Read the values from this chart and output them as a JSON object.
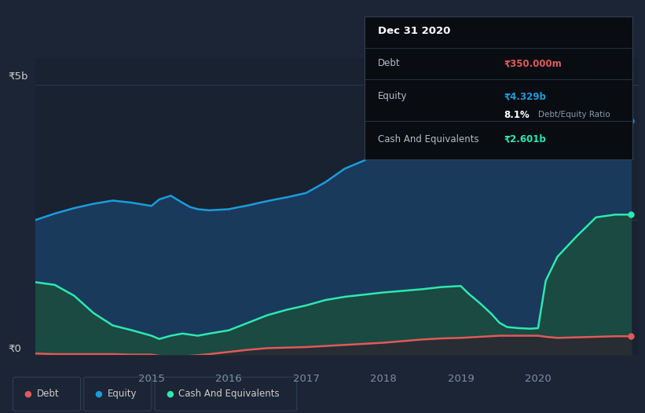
{
  "background_color": "#1c2535",
  "plot_bg_color": "#1e2d3e",
  "chart_bg_color": "#192230",
  "title": "Dec 31 2020",
  "y_label_5b": "₹5b",
  "y_label_0": "₹0",
  "ylim": [
    0,
    5.5
  ],
  "xlim": [
    2013.5,
    2021.3
  ],
  "equity_color": "#1b9cdb",
  "debt_color": "#e05a5a",
  "cash_color": "#2de8b0",
  "equity_fill": "#1a3a5c",
  "cash_fill": "#1a4a42",
  "debt_fill": "#2a2830",
  "grid_color": "#2a3f55",
  "tooltip_bg": "#090d12",
  "tooltip_border": "#2a3f55",
  "legend_bg": "#1c2535",
  "legend_border": "#2e3f52",
  "equity_x": [
    2013.5,
    2013.75,
    2014.0,
    2014.25,
    2014.5,
    2014.75,
    2015.0,
    2015.1,
    2015.25,
    2015.4,
    2015.5,
    2015.6,
    2015.75,
    2016.0,
    2016.1,
    2016.25,
    2016.4,
    2016.5,
    2016.6,
    2016.75,
    2017.0,
    2017.25,
    2017.5,
    2017.75,
    2018.0,
    2018.25,
    2018.5,
    2018.75,
    2019.0,
    2019.1,
    2019.25,
    2019.4,
    2019.5,
    2019.6,
    2019.75,
    2020.0,
    2020.1,
    2020.25,
    2020.5,
    2020.75,
    2021.0,
    2021.2
  ],
  "equity_y": [
    2.5,
    2.62,
    2.72,
    2.8,
    2.86,
    2.82,
    2.76,
    2.88,
    2.95,
    2.82,
    2.74,
    2.7,
    2.68,
    2.7,
    2.73,
    2.77,
    2.82,
    2.85,
    2.88,
    2.92,
    3.0,
    3.2,
    3.45,
    3.6,
    3.78,
    3.92,
    4.05,
    4.18,
    4.28,
    4.42,
    4.52,
    4.6,
    4.55,
    4.5,
    4.46,
    4.43,
    4.46,
    4.5,
    4.5,
    4.42,
    4.34,
    4.33
  ],
  "debt_x": [
    2013.5,
    2013.75,
    2014.0,
    2014.25,
    2014.5,
    2014.75,
    2015.0,
    2015.1,
    2015.25,
    2015.4,
    2015.5,
    2015.6,
    2015.75,
    2016.0,
    2016.25,
    2016.5,
    2016.75,
    2017.0,
    2017.25,
    2017.5,
    2017.75,
    2018.0,
    2018.25,
    2018.5,
    2018.75,
    2019.0,
    2019.25,
    2019.5,
    2019.75,
    2020.0,
    2020.1,
    2020.25,
    2020.5,
    2020.75,
    2021.0,
    2021.2
  ],
  "debt_y": [
    0.03,
    0.02,
    0.02,
    0.02,
    0.02,
    0.01,
    0.01,
    -0.01,
    -0.02,
    -0.02,
    -0.01,
    0.0,
    0.02,
    0.06,
    0.1,
    0.13,
    0.14,
    0.15,
    0.17,
    0.19,
    0.21,
    0.23,
    0.26,
    0.29,
    0.31,
    0.32,
    0.34,
    0.36,
    0.36,
    0.36,
    0.34,
    0.32,
    0.33,
    0.34,
    0.35,
    0.35
  ],
  "cash_x": [
    2013.5,
    2013.75,
    2014.0,
    2014.25,
    2014.5,
    2014.75,
    2015.0,
    2015.1,
    2015.25,
    2015.4,
    2015.5,
    2015.6,
    2015.75,
    2016.0,
    2016.25,
    2016.5,
    2016.75,
    2017.0,
    2017.25,
    2017.5,
    2017.75,
    2018.0,
    2018.25,
    2018.5,
    2018.75,
    2019.0,
    2019.1,
    2019.25,
    2019.4,
    2019.5,
    2019.6,
    2019.75,
    2019.9,
    2020.0,
    2020.1,
    2020.25,
    2020.5,
    2020.75,
    2021.0,
    2021.2
  ],
  "cash_y": [
    1.35,
    1.3,
    1.1,
    0.78,
    0.55,
    0.46,
    0.36,
    0.3,
    0.36,
    0.4,
    0.38,
    0.36,
    0.4,
    0.46,
    0.6,
    0.74,
    0.84,
    0.92,
    1.02,
    1.08,
    1.12,
    1.16,
    1.19,
    1.22,
    1.26,
    1.28,
    1.14,
    0.96,
    0.76,
    0.6,
    0.52,
    0.5,
    0.49,
    0.5,
    1.38,
    1.82,
    2.2,
    2.55,
    2.6,
    2.6
  ]
}
